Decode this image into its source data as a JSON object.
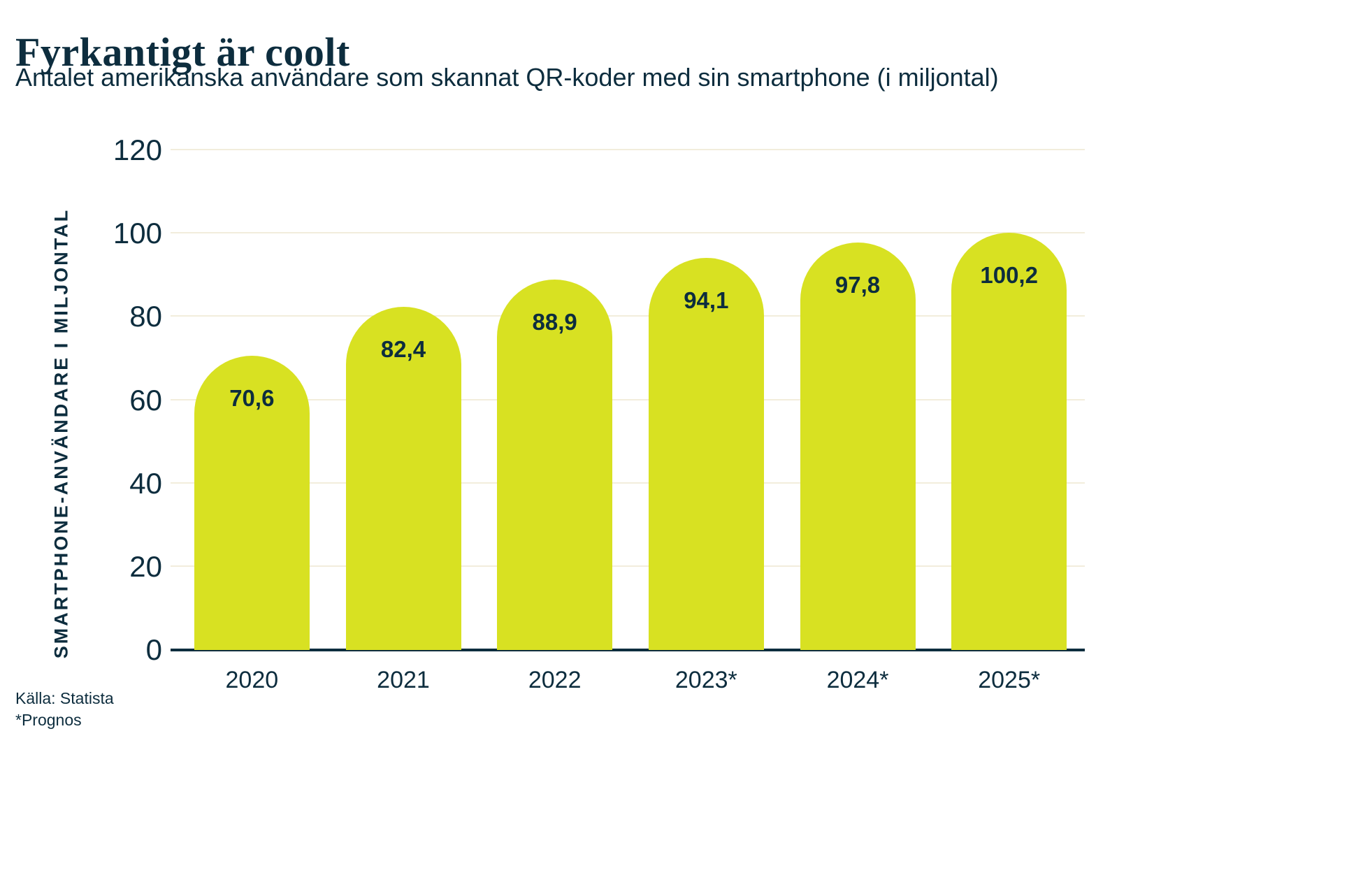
{
  "header": {
    "title": "Fyrkantigt är coolt",
    "subtitle": "Antalet amerikanska användare som skannat QR-koder med sin smartphone (i miljontal)"
  },
  "chart_data": {
    "type": "bar",
    "title": "Fyrkantigt är coolt",
    "subtitle": "Antalet amerikanska användare som skannat QR-koder med sin smartphone (i miljontal)",
    "categories": [
      "2020",
      "2021",
      "2022",
      "2023*",
      "2024*",
      "2025*"
    ],
    "values": [
      70.6,
      82.4,
      88.9,
      94.1,
      97.8,
      100.2
    ],
    "value_labels": [
      "70,6",
      "82,4",
      "88,9",
      "94,1",
      "97,8",
      "100,2"
    ],
    "xlabel": "",
    "ylabel": "SMARTPHONE-ANVÄNDARE I MILJONTAL",
    "ylim": [
      0,
      120
    ],
    "yticks": [
      0,
      20,
      40,
      60,
      80,
      100,
      120
    ],
    "grid": true,
    "legend": "none",
    "bar_color": "#d8e122",
    "text_color": "#0d2d3e",
    "grid_color": "#f2eddc"
  },
  "footer": {
    "source": "Källa: Statista",
    "note": "*Prognos"
  }
}
